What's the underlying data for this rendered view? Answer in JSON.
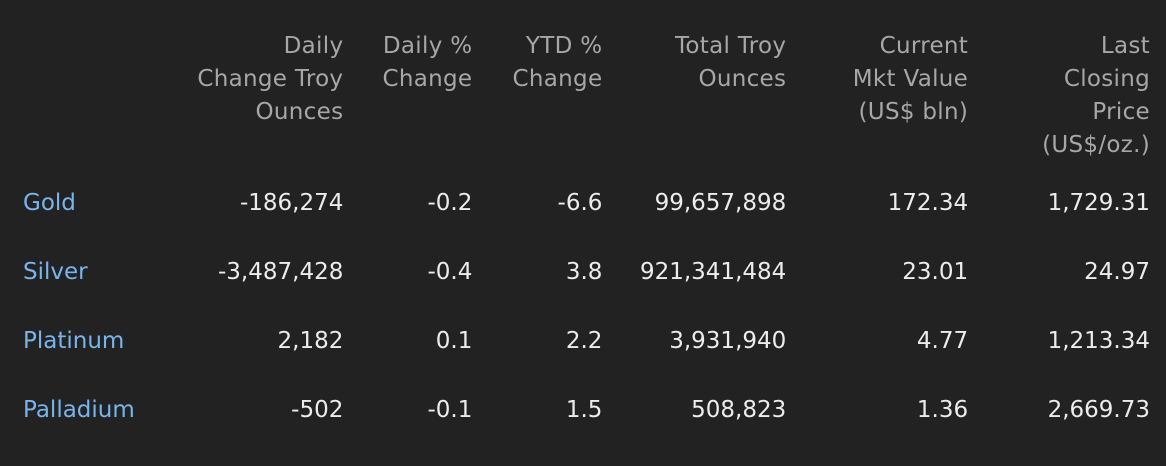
{
  "columns": [
    [
      "Daily",
      "Change Troy",
      "Ounces"
    ],
    [
      "Daily %",
      "Change"
    ],
    [
      "YTD %",
      "Change"
    ],
    [
      "Total Troy",
      "Ounces"
    ],
    [
      "Current",
      "Mkt Value",
      "(US$ bln)"
    ],
    [
      "Last",
      "Closing",
      "Price",
      "(US$/oz.)"
    ]
  ],
  "rows": [
    {
      "metal": "Gold",
      "values": [
        "-186,274",
        "-0.2",
        "-6.6",
        "99,657,898",
        "172.34",
        "1,729.31"
      ]
    },
    {
      "metal": "Silver",
      "values": [
        "-3,487,428",
        "-0.4",
        "3.8",
        "921,341,484",
        "23.01",
        "24.97"
      ]
    },
    {
      "metal": "Platinum",
      "values": [
        "2,182",
        "0.1",
        "2.2",
        "3,931,940",
        "4.77",
        "1,213.34"
      ]
    },
    {
      "metal": "Palladium",
      "values": [
        "-502",
        "-0.1",
        "1.5",
        "508,823",
        "1.36",
        "2,669.73"
      ]
    }
  ],
  "colors": {
    "background": "#222222",
    "header_text": "#a7a7a7",
    "value_text": "#ececec",
    "metal_link": "#79b4ee"
  }
}
